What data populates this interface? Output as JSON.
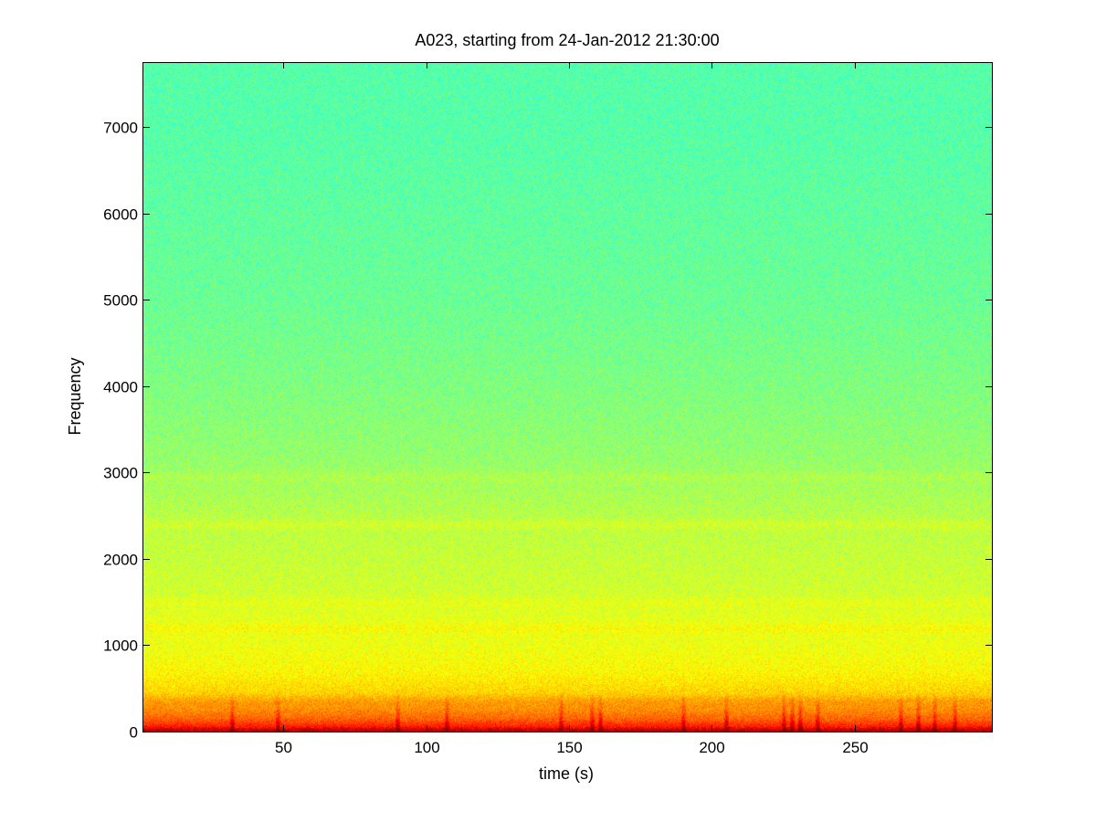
{
  "chart_data": {
    "type": "heatmap",
    "title": "A023, starting from 24-Jan-2012 21:30:00",
    "xlabel": "time (s)",
    "ylabel": "Frequency",
    "xlim": [
      1,
      298
    ],
    "ylim": [
      0,
      7750
    ],
    "x_ticks": [
      50,
      100,
      150,
      200,
      250
    ],
    "y_ticks": [
      0,
      1000,
      2000,
      3000,
      4000,
      5000,
      6000,
      7000
    ],
    "colormap": "jet",
    "grid": false,
    "intensity_profile": {
      "frequency": [
        0,
        50,
        150,
        300,
        450,
        700,
        1000,
        1300,
        1600,
        2000,
        2400,
        2800,
        3200,
        4000,
        5000,
        6000,
        7000,
        7750
      ],
      "relative_power": [
        0.97,
        0.86,
        0.78,
        0.72,
        0.67,
        0.63,
        0.61,
        0.6,
        0.58,
        0.57,
        0.56,
        0.54,
        0.52,
        0.5,
        0.48,
        0.47,
        0.46,
        0.46
      ]
    },
    "broadband_events_s": [
      32,
      48,
      90,
      107,
      147,
      158,
      161,
      190,
      205,
      225,
      228,
      231,
      237,
      266,
      272,
      278,
      285
    ]
  }
}
